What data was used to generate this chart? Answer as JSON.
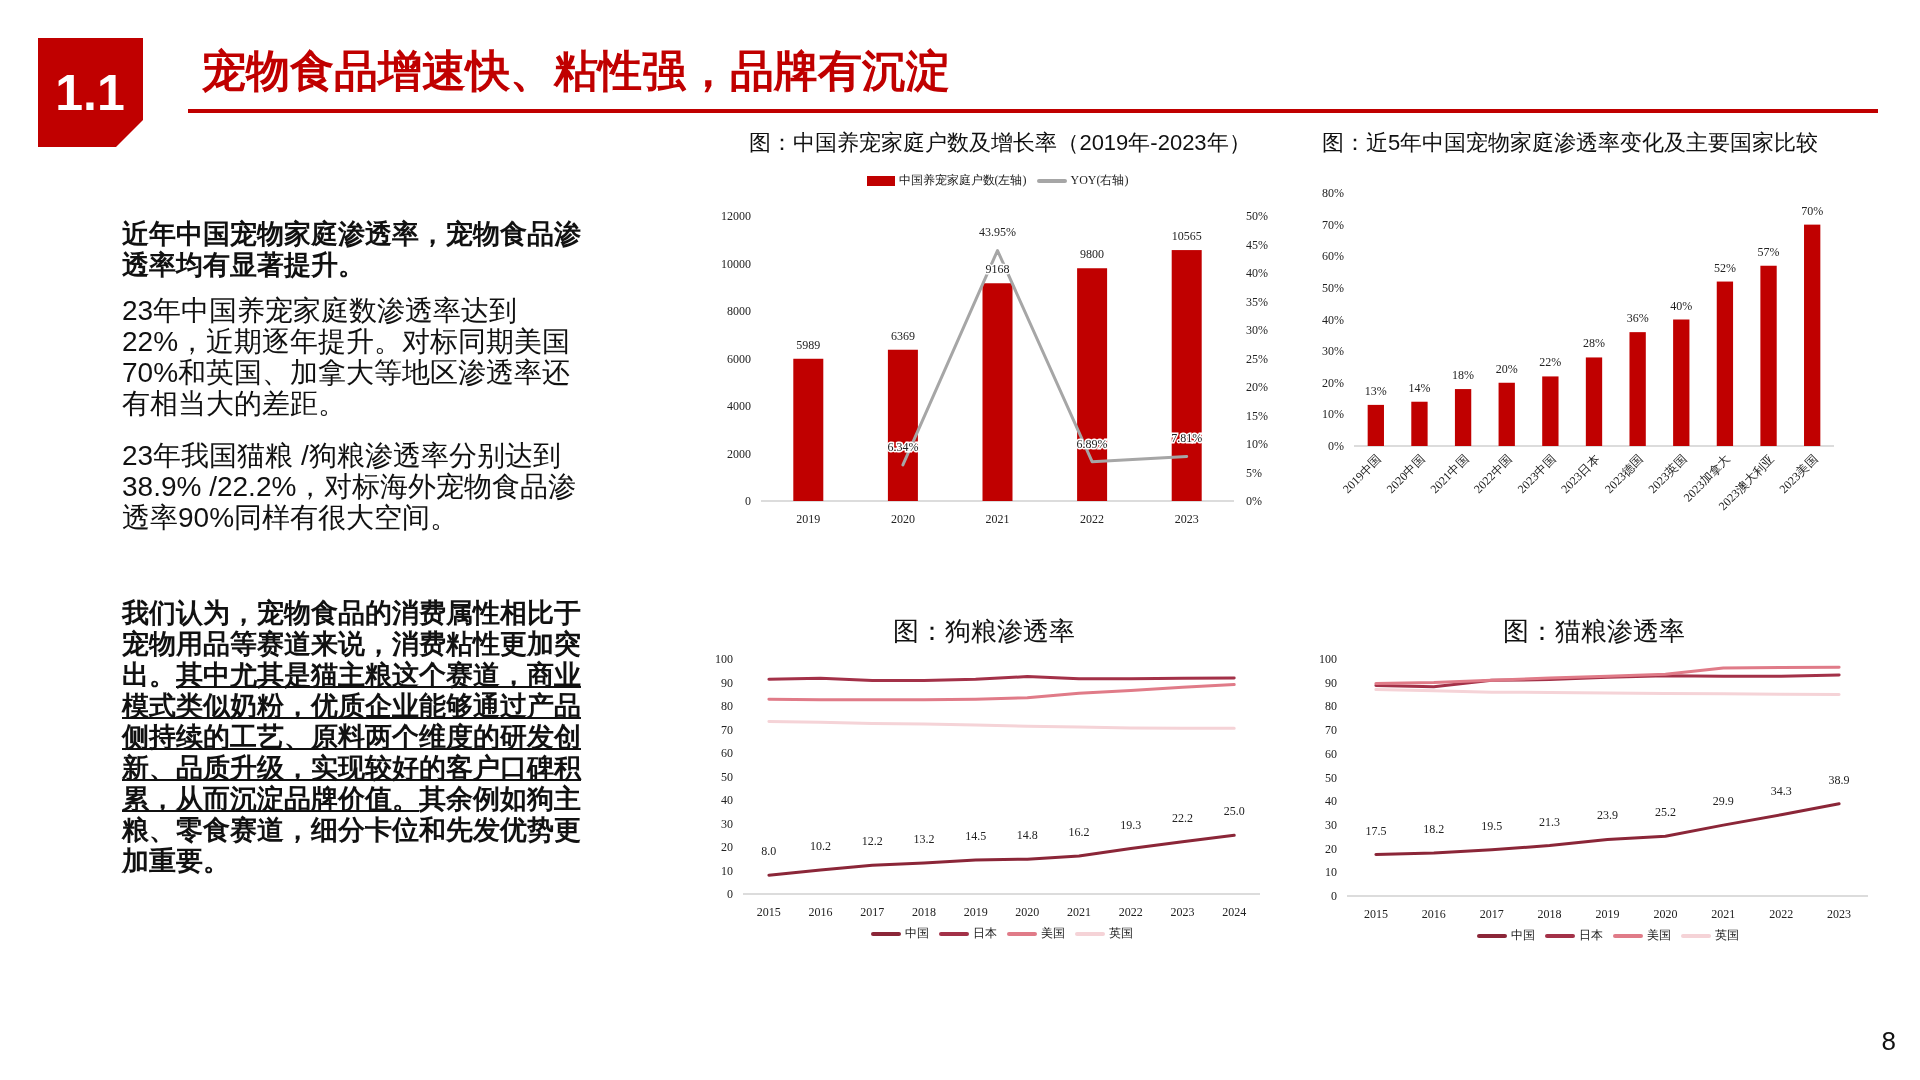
{
  "chart_data": [
    {
      "type": "other",
      "title": "宠物食品增速快、粘性强，品牌有沉淀",
      "subtitle": "1.1",
      "annotations": [
        "近年中国宠物家庭渗透率，宠物食品渗透率均有显著提升。",
        "23年中国养宠家庭数渗透率达到22%，近期逐年提升。对标同期美国70%和英国、加拿大等地区渗透率还有相当大的差距。",
        "23年我国猫粮 /狗粮渗透率分别达到38.9% /22.2%，对标海外宠物食品渗透率90%同样有很大空间。",
        "我们认为，宠物食品的消费属性相比于宠物用品等赛道来说，消费粘性更加突出。",
        "其中尤其是猫主粮这个赛道，商业模式类似奶粉，优质企业能够通过产品侧持续的工艺、原料两个维度的研发创新、品质升级，实现较好的客户口碑积累，从而沉淀品牌价值。",
        "其余例如狗主粮、零食赛道，细分卡位和先发优势更加重要。",
        "8"
      ]
    },
    {
      "type": "bar",
      "title": "图：中国养宠家庭户数及增长率（2019年-2023年）",
      "categories": [
        "2019",
        "2020",
        "2021",
        "2022",
        "2023"
      ],
      "series": [
        {
          "name": "中国养宠家庭户数(左轴)",
          "color": "#c00000",
          "values": [
            5989,
            6369,
            9168,
            9800,
            10565
          ],
          "value_labels": [
            "5989",
            "6369",
            "9168",
            "9800",
            "10565"
          ]
        },
        {
          "name": "YOY(右轴)",
          "type": "line",
          "axis": "y2",
          "color": "#a6a6a6",
          "values": [
            null,
            6.34,
            43.95,
            6.89,
            7.81
          ],
          "value_labels": [
            null,
            "6.34%",
            "43.95%",
            "6.89%",
            "7.81%"
          ]
        }
      ],
      "ylim": [
        0,
        12000
      ],
      "yticks": [
        0,
        2000,
        4000,
        6000,
        8000,
        10000,
        12000
      ],
      "y2lim": [
        0,
        50
      ],
      "y2ticks": [
        {
          "value": 0,
          "label": "0%"
        },
        {
          "value": 5,
          "label": "5%"
        },
        {
          "value": 10,
          "label": "10%"
        },
        {
          "value": 15,
          "label": "15%"
        },
        {
          "value": 20,
          "label": "20%"
        },
        {
          "value": 25,
          "label": "25%"
        },
        {
          "value": 30,
          "label": "30%"
        },
        {
          "value": 35,
          "label": "35%"
        },
        {
          "value": 40,
          "label": "40%"
        },
        {
          "value": 45,
          "label": "45%"
        },
        {
          "value": 50,
          "label": "50%"
        }
      ],
      "legend": "top",
      "marker": "none"
    },
    {
      "type": "bar",
      "title": "图：近5年中国宠物家庭渗透率变化及主要国家比较",
      "categories": [
        "2019中国",
        "2020中国",
        "2021中国",
        "2022中国",
        "2023中国",
        "2023日本",
        "2023德国",
        "2023英国",
        "2023加拿大",
        "2023澳大利亚",
        "2023美国"
      ],
      "series": [
        {
          "color": "#c00000",
          "values": [
            13,
            14,
            18,
            20,
            22,
            28,
            36,
            40,
            52,
            57,
            70
          ],
          "value_labels": [
            "13%",
            "14%",
            "18%",
            "20%",
            "22%",
            "28%",
            "36%",
            "40%",
            "52%",
            "57%",
            "70%"
          ]
        }
      ],
      "ylim": [
        0,
        80
      ],
      "yticks": [
        {
          "value": 0,
          "label": "0%"
        },
        {
          "value": 10,
          "label": "10%"
        },
        {
          "value": 20,
          "label": "20%"
        },
        {
          "value": 30,
          "label": "30%"
        },
        {
          "value": 40,
          "label": "40%"
        },
        {
          "value": 50,
          "label": "50%"
        },
        {
          "value": 60,
          "label": "60%"
        },
        {
          "value": 70,
          "label": "70%"
        },
        {
          "value": 80,
          "label": "80%"
        }
      ]
    },
    {
      "type": "line",
      "title": "图：狗粮渗透率",
      "categories": [
        "2015",
        "2016",
        "2017",
        "2018",
        "2019",
        "2020",
        "2021",
        "2022",
        "2023",
        "2024"
      ],
      "series": [
        {
          "name": "中国",
          "color": "#8b2638",
          "values": [
            8.0,
            10.2,
            12.2,
            13.2,
            14.5,
            14.8,
            16.2,
            19.3,
            22.2,
            25.0
          ],
          "value_labels": [
            "8.0",
            "10.2",
            "12.2",
            "13.2",
            "14.5",
            "14.8",
            "16.2",
            "19.3",
            "22.2",
            "25.0"
          ]
        },
        {
          "name": "日本",
          "color": "#a33148",
          "values": [
            91.4,
            91.8,
            90.8,
            90.8,
            91.4,
            92.5,
            91.6,
            91.6,
            91.8,
            91.9
          ]
        },
        {
          "name": "美国",
          "color": "#e07b88",
          "values": [
            82.9,
            82.7,
            82.7,
            82.7,
            82.9,
            83.5,
            85.4,
            86.6,
            88.0,
            89.1
          ]
        },
        {
          "name": "英国",
          "color": "#f5d3d7",
          "values": [
            73.4,
            73.1,
            72.6,
            72.3,
            71.9,
            71.4,
            71.0,
            70.6,
            70.5,
            70.5
          ]
        }
      ],
      "ylim": [
        0,
        100
      ],
      "yticks": [
        0,
        10,
        20,
        30,
        40,
        50,
        60,
        70,
        80,
        90,
        100
      ],
      "legend": "bottom",
      "marker": "none"
    },
    {
      "type": "line",
      "title": "图：猫粮渗透率",
      "categories": [
        "2015",
        "2016",
        "2017",
        "2018",
        "2019",
        "2020",
        "2021",
        "2022",
        "2023"
      ],
      "series": [
        {
          "name": "中国",
          "color": "#8b2638",
          "values": [
            17.5,
            18.2,
            19.5,
            21.3,
            23.9,
            25.2,
            29.9,
            34.3,
            38.9
          ],
          "value_labels": [
            "17.5",
            "18.2",
            "19.5",
            "21.3",
            "23.9",
            "25.2",
            "29.9",
            "34.3",
            "38.9"
          ]
        },
        {
          "name": "日本",
          "color": "#a33148",
          "values": [
            88.8,
            88.3,
            91.0,
            91.3,
            92.3,
            92.9,
            92.7,
            92.7,
            93.3
          ]
        },
        {
          "name": "美国",
          "color": "#e07b88",
          "values": [
            89.7,
            90.1,
            91.0,
            92.0,
            92.7,
            93.6,
            96.2,
            96.4,
            96.5
          ]
        },
        {
          "name": "英国",
          "color": "#f5d3d7",
          "values": [
            87.1,
            86.6,
            86.0,
            85.9,
            85.6,
            85.4,
            85.3,
            85.1,
            85.0
          ]
        }
      ],
      "ylim": [
        0,
        100
      ],
      "yticks": [
        0,
        10,
        20,
        30,
        40,
        50,
        60,
        70,
        80,
        90,
        100
      ],
      "legend": "bottom",
      "marker": "none"
    }
  ]
}
